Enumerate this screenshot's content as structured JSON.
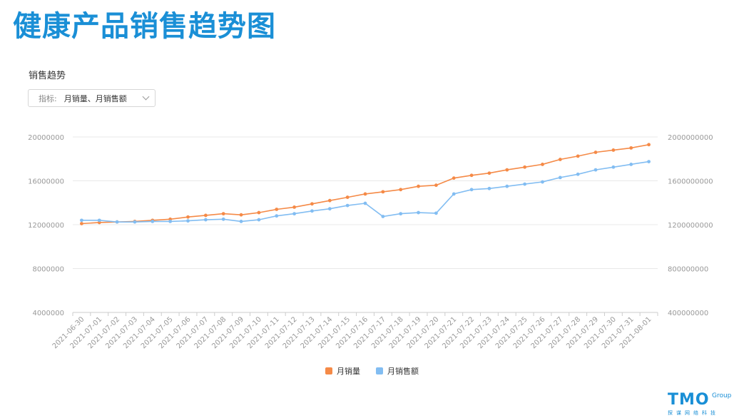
{
  "page": {
    "title": "健康产品销售趋势图",
    "section_title": "销售趋势",
    "indicator_label": "指标:",
    "indicator_value": "月销量、月销售额"
  },
  "colors": {
    "sales_volume": "#f58a47",
    "sales_amount": "#82bdf2",
    "grid": "#e8e8e8",
    "title": "#1a8fd6"
  },
  "logo": {
    "main": "TMO",
    "group": "Group",
    "sub": "探谋网络科技"
  },
  "chart_data": {
    "type": "line",
    "categories": [
      "2021-06-30",
      "2021-07-01",
      "2021-07-02",
      "2021-07-03",
      "2021-07-04",
      "2021-07-05",
      "2021-07-06",
      "2021-07-07",
      "2021-07-08",
      "2021-07-09",
      "2021-07-10",
      "2021-07-11",
      "2021-07-12",
      "2021-07-13",
      "2021-07-14",
      "2021-07-15",
      "2021-07-16",
      "2021-07-17",
      "2021-07-18",
      "2021-07-19",
      "2021-07-20",
      "2021-07-21",
      "2021-07-22",
      "2021-07-23",
      "2021-07-24",
      "2021-07-25",
      "2021-07-26",
      "2021-07-27",
      "2021-07-28",
      "2021-07-29",
      "2021-07-30",
      "2021-07-31",
      "2021-08-01"
    ],
    "y_left": {
      "min": 4000000,
      "max": 20000000,
      "ticks": [
        "4000000",
        "8000000",
        "12000000",
        "16000000",
        "20000000"
      ]
    },
    "y_right": {
      "min": 400000000,
      "max": 2000000000,
      "ticks": [
        "400000000",
        "800000000",
        "1200000000",
        "1600000000",
        "2000000000"
      ]
    },
    "grid": true,
    "legend_position": "bottom",
    "series": [
      {
        "name": "月销量",
        "axis": "left",
        "color": "#f58a47",
        "values": [
          12100000,
          12200000,
          12250000,
          12300000,
          12400000,
          12500000,
          12700000,
          12850000,
          13000000,
          12900000,
          13100000,
          13400000,
          13600000,
          13900000,
          14200000,
          14500000,
          14800000,
          15000000,
          15200000,
          15500000,
          15600000,
          16250000,
          16500000,
          16700000,
          17000000,
          17250000,
          17500000,
          17950000,
          18250000,
          18600000,
          18800000,
          19000000,
          19300000
        ]
      },
      {
        "name": "月销售额",
        "axis": "right",
        "color": "#82bdf2",
        "values": [
          1240000000,
          1240000000,
          1225000000,
          1225000000,
          1230000000,
          1230000000,
          1235000000,
          1245000000,
          1250000000,
          1230000000,
          1245000000,
          1280000000,
          1300000000,
          1325000000,
          1345000000,
          1375000000,
          1395000000,
          1275000000,
          1300000000,
          1310000000,
          1305000000,
          1480000000,
          1520000000,
          1530000000,
          1550000000,
          1570000000,
          1590000000,
          1630000000,
          1660000000,
          1700000000,
          1725000000,
          1750000000,
          1775000000
        ]
      }
    ]
  }
}
